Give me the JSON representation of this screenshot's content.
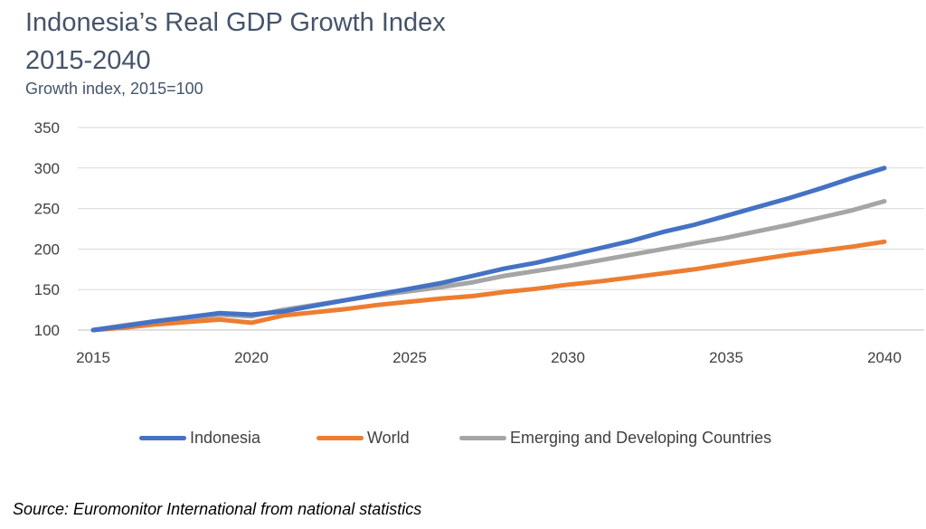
{
  "chart_data": {
    "type": "line",
    "title_line1": "Indonesia’s Real GDP Growth Index",
    "title_line2": "2015-2040",
    "subtitle": "Growth index, 2015=100",
    "x": [
      2015,
      2016,
      2017,
      2018,
      2019,
      2020,
      2021,
      2022,
      2023,
      2024,
      2025,
      2026,
      2027,
      2028,
      2029,
      2030,
      2031,
      2032,
      2033,
      2034,
      2035,
      2036,
      2037,
      2038,
      2039,
      2040
    ],
    "x_ticks": [
      2015,
      2020,
      2025,
      2030,
      2035,
      2040
    ],
    "y_ticks": [
      100,
      150,
      200,
      250,
      300,
      350
    ],
    "ylim": [
      100,
      350
    ],
    "grid": true,
    "series": [
      {
        "name": "Indonesia",
        "color": "#4472c4",
        "values": [
          100,
          105,
          111,
          116,
          121,
          119,
          123,
          130,
          137,
          144,
          151,
          158,
          167,
          176,
          183,
          192,
          201,
          210,
          221,
          230,
          241,
          252,
          263,
          275,
          288,
          300
        ]
      },
      {
        "name": "World",
        "color": "#ed7d31",
        "values": [
          100,
          103,
          107,
          110,
          113,
          109,
          118,
          122,
          126,
          131,
          135,
          139,
          142,
          147,
          151,
          156,
          160,
          165,
          170,
          175,
          181,
          187,
          193,
          198,
          203,
          209
        ]
      },
      {
        "name": "Emerging and Developing Countries",
        "color": "#a5a5a5",
        "values": [
          100,
          106,
          111,
          115,
          119,
          117,
          125,
          131,
          137,
          143,
          148,
          153,
          159,
          167,
          173,
          179,
          186,
          193,
          200,
          207,
          214,
          222,
          230,
          239,
          248,
          259
        ]
      }
    ],
    "legend_position": "bottom",
    "source": "Source: Euromonitor International from national statistics"
  }
}
